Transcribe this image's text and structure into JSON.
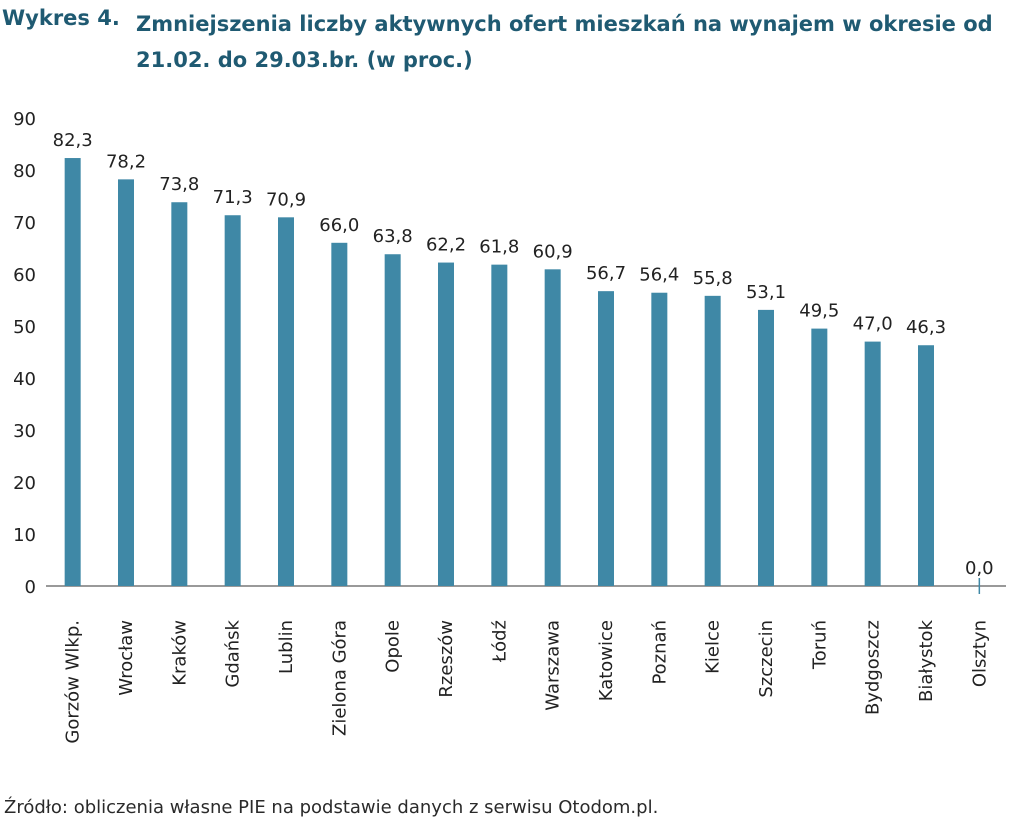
{
  "header": {
    "label": "Wykres 4.",
    "title": "Zmniejszenia liczby aktywnych ofert mieszkań na wynajem w okresie od 21.02. do 29.03.br. (w proc.)"
  },
  "source": "Źródło: obliczenia własne PIE na podstawie danych z serwisu Otodom.pl.",
  "colors": {
    "bar": "#3f88a6",
    "title": "#1f5a72",
    "axis": "#333333"
  },
  "chart_data": {
    "type": "bar",
    "title": "Zmniejszenia liczby aktywnych ofert mieszkań na wynajem w okresie od 21.02. do 29.03.br. (w proc.)",
    "xlabel": "",
    "ylabel": "",
    "ylim": [
      0,
      90
    ],
    "yticks": [
      0,
      10,
      20,
      30,
      40,
      50,
      60,
      70,
      80,
      90
    ],
    "grid": false,
    "legend": "none",
    "categories": [
      "Gorzów Wlkp.",
      "Wrocław",
      "Kraków",
      "Gdańsk",
      "Lublin",
      "Zielona Góra",
      "Opole",
      "Rzeszów",
      "Łódź",
      "Warszawa",
      "Katowice",
      "Poznań",
      "Kielce",
      "Szczecin",
      "Toruń",
      "Bydgoszcz",
      "Białystok",
      "Olsztyn"
    ],
    "values": [
      82.3,
      78.2,
      73.8,
      71.3,
      70.9,
      66.0,
      63.8,
      62.2,
      61.8,
      60.9,
      56.7,
      56.4,
      55.8,
      53.1,
      49.5,
      47.0,
      46.3,
      0.0
    ],
    "value_labels": [
      "82,3",
      "78,2",
      "73,8",
      "71,3",
      "70,9",
      "66,0",
      "63,8",
      "62,2",
      "61,8",
      "60,9",
      "56,7",
      "56,4",
      "55,8",
      "53,1",
      "49,5",
      "47,0",
      "46,3",
      "0,0"
    ]
  }
}
